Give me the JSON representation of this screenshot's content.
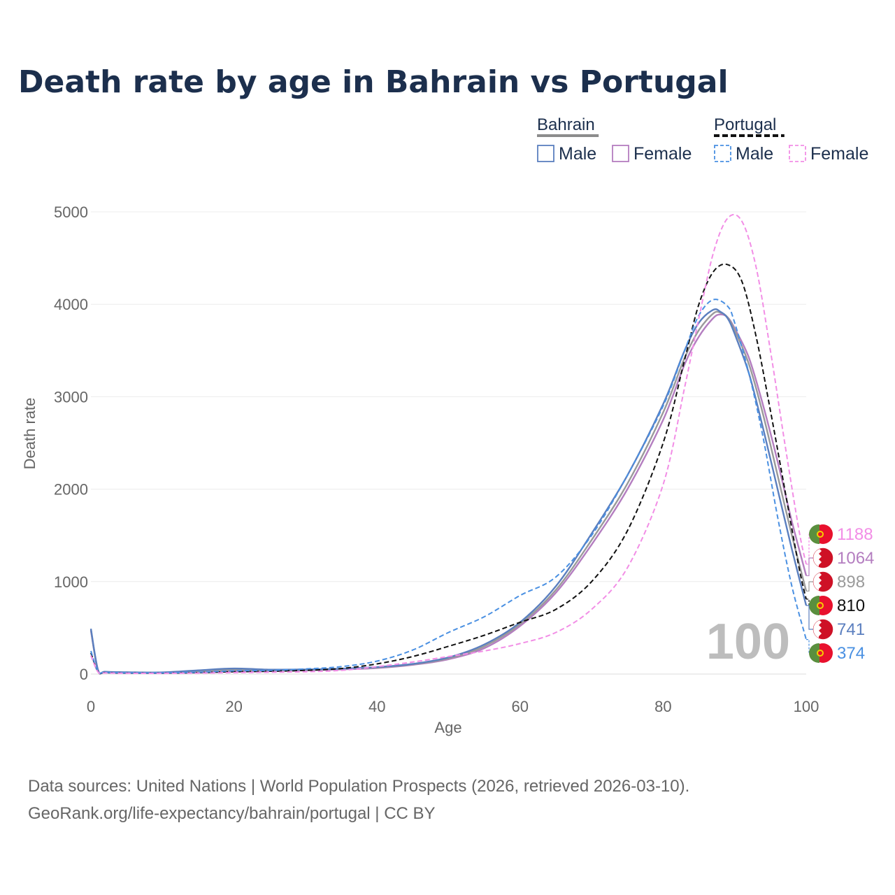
{
  "chart_data": {
    "type": "line",
    "title": "Death rate by age in Bahrain vs Portugal",
    "xlabel": "Age",
    "ylabel": "Death rate",
    "xlim": [
      0,
      100
    ],
    "ylim": [
      0,
      5000
    ],
    "x_ticks": [
      0,
      20,
      40,
      60,
      80,
      100
    ],
    "y_ticks": [
      0,
      1000,
      2000,
      3000,
      4000,
      5000
    ],
    "grid": true,
    "current_age_label": "100",
    "legend": {
      "groups": [
        {
          "name": "Bahrain",
          "style": "solid",
          "entries": [
            "Male",
            "Female"
          ]
        },
        {
          "name": "Portugal",
          "style": "dashed",
          "entries": [
            "Male",
            "Female"
          ]
        }
      ]
    },
    "series": [
      {
        "name": "Bahrain Female",
        "country": "Bahrain",
        "sex": "Female",
        "color": "#b47ec0",
        "dash": false,
        "end_value": "1064",
        "points": [
          [
            0,
            470
          ],
          [
            1,
            40
          ],
          [
            2,
            22
          ],
          [
            5,
            15
          ],
          [
            10,
            12
          ],
          [
            15,
            20
          ],
          [
            20,
            30
          ],
          [
            25,
            32
          ],
          [
            30,
            40
          ],
          [
            35,
            50
          ],
          [
            40,
            65
          ],
          [
            45,
            100
          ],
          [
            50,
            160
          ],
          [
            55,
            280
          ],
          [
            60,
            520
          ],
          [
            65,
            880
          ],
          [
            70,
            1400
          ],
          [
            75,
            2000
          ],
          [
            80,
            2750
          ],
          [
            83,
            3350
          ],
          [
            85,
            3650
          ],
          [
            87,
            3850
          ],
          [
            88,
            3890
          ],
          [
            89,
            3860
          ],
          [
            90,
            3740
          ],
          [
            92,
            3420
          ],
          [
            94,
            2900
          ],
          [
            96,
            2300
          ],
          [
            98,
            1650
          ],
          [
            100,
            1064
          ]
        ]
      },
      {
        "name": "Bahrain Both",
        "country": "Bahrain",
        "sex": "Both",
        "color": "#9a9a9a",
        "dash": false,
        "end_value": "898",
        "points": [
          [
            0,
            480
          ],
          [
            1,
            40
          ],
          [
            2,
            24
          ],
          [
            5,
            18
          ],
          [
            10,
            15
          ],
          [
            15,
            30
          ],
          [
            20,
            45
          ],
          [
            25,
            40
          ],
          [
            30,
            45
          ],
          [
            35,
            55
          ],
          [
            40,
            70
          ],
          [
            45,
            105
          ],
          [
            50,
            170
          ],
          [
            55,
            300
          ],
          [
            60,
            540
          ],
          [
            65,
            910
          ],
          [
            70,
            1450
          ],
          [
            75,
            2060
          ],
          [
            80,
            2830
          ],
          [
            83,
            3420
          ],
          [
            85,
            3720
          ],
          [
            87,
            3900
          ],
          [
            88,
            3910
          ],
          [
            89,
            3860
          ],
          [
            90,
            3720
          ],
          [
            92,
            3350
          ],
          [
            94,
            2800
          ],
          [
            96,
            2150
          ],
          [
            98,
            1500
          ],
          [
            100,
            898
          ]
        ]
      },
      {
        "name": "Bahrain Male",
        "country": "Bahrain",
        "sex": "Male",
        "color": "#5b7fbf",
        "dash": false,
        "end_value": "741",
        "points": [
          [
            0,
            490
          ],
          [
            1,
            45
          ],
          [
            2,
            25
          ],
          [
            5,
            20
          ],
          [
            10,
            18
          ],
          [
            15,
            40
          ],
          [
            20,
            60
          ],
          [
            25,
            48
          ],
          [
            30,
            50
          ],
          [
            35,
            58
          ],
          [
            40,
            75
          ],
          [
            45,
            110
          ],
          [
            50,
            180
          ],
          [
            55,
            320
          ],
          [
            60,
            560
          ],
          [
            65,
            950
          ],
          [
            70,
            1520
          ],
          [
            75,
            2150
          ],
          [
            80,
            2920
          ],
          [
            83,
            3500
          ],
          [
            85,
            3800
          ],
          [
            87,
            3940
          ],
          [
            88,
            3920
          ],
          [
            89,
            3850
          ],
          [
            90,
            3680
          ],
          [
            92,
            3250
          ],
          [
            94,
            2650
          ],
          [
            96,
            2000
          ],
          [
            98,
            1350
          ],
          [
            100,
            741
          ]
        ]
      },
      {
        "name": "Portugal Both",
        "country": "Portugal",
        "sex": "Both",
        "color": "#111111",
        "dash": true,
        "end_value": "810",
        "points": [
          [
            0,
            230
          ],
          [
            1,
            25
          ],
          [
            2,
            15
          ],
          [
            5,
            10
          ],
          [
            10,
            10
          ],
          [
            15,
            15
          ],
          [
            20,
            25
          ],
          [
            25,
            30
          ],
          [
            30,
            40
          ],
          [
            35,
            60
          ],
          [
            40,
            110
          ],
          [
            45,
            190
          ],
          [
            50,
            300
          ],
          [
            55,
            420
          ],
          [
            60,
            560
          ],
          [
            65,
            700
          ],
          [
            70,
            1000
          ],
          [
            75,
            1550
          ],
          [
            80,
            2500
          ],
          [
            83,
            3400
          ],
          [
            85,
            4000
          ],
          [
            87,
            4350
          ],
          [
            89,
            4430
          ],
          [
            91,
            4250
          ],
          [
            93,
            3650
          ],
          [
            95,
            2850
          ],
          [
            97,
            2000
          ],
          [
            99,
            1150
          ],
          [
            100,
            810
          ]
        ]
      },
      {
        "name": "Portugal Male",
        "country": "Portugal",
        "sex": "Male",
        "color": "#4a90e2",
        "dash": true,
        "end_value": "374",
        "points": [
          [
            0,
            250
          ],
          [
            1,
            28
          ],
          [
            2,
            18
          ],
          [
            5,
            12
          ],
          [
            10,
            12
          ],
          [
            15,
            20
          ],
          [
            20,
            35
          ],
          [
            25,
            40
          ],
          [
            30,
            55
          ],
          [
            35,
            80
          ],
          [
            40,
            140
          ],
          [
            45,
            260
          ],
          [
            50,
            450
          ],
          [
            55,
            620
          ],
          [
            60,
            850
          ],
          [
            65,
            1050
          ],
          [
            70,
            1500
          ],
          [
            75,
            2150
          ],
          [
            80,
            2900
          ],
          [
            83,
            3500
          ],
          [
            85,
            3880
          ],
          [
            87,
            4050
          ],
          [
            89,
            3980
          ],
          [
            90,
            3800
          ],
          [
            92,
            3250
          ],
          [
            94,
            2550
          ],
          [
            96,
            1700
          ],
          [
            98,
            950
          ],
          [
            100,
            374
          ]
        ]
      },
      {
        "name": "Portugal Female",
        "country": "Portugal",
        "sex": "Female",
        "color": "#f28ee6",
        "dash": true,
        "end_value": "1188",
        "points": [
          [
            0,
            200
          ],
          [
            1,
            22
          ],
          [
            2,
            12
          ],
          [
            5,
            8
          ],
          [
            10,
            8
          ],
          [
            15,
            10
          ],
          [
            20,
            15
          ],
          [
            25,
            20
          ],
          [
            30,
            25
          ],
          [
            35,
            40
          ],
          [
            40,
            80
          ],
          [
            45,
            130
          ],
          [
            50,
            190
          ],
          [
            55,
            250
          ],
          [
            60,
            330
          ],
          [
            65,
            450
          ],
          [
            70,
            700
          ],
          [
            75,
            1150
          ],
          [
            80,
            2050
          ],
          [
            83,
            3100
          ],
          [
            85,
            3850
          ],
          [
            87,
            4550
          ],
          [
            89,
            4930
          ],
          [
            91,
            4900
          ],
          [
            93,
            4400
          ],
          [
            95,
            3500
          ],
          [
            97,
            2500
          ],
          [
            99,
            1550
          ],
          [
            100,
            1188
          ]
        ]
      }
    ]
  },
  "footer": {
    "line1": "Data sources: United Nations | World Population Prospects (2026, retrieved 2026-03-10).",
    "line2": "GeoRank.org/life-expectancy/bahrain/portugal | CC BY"
  }
}
